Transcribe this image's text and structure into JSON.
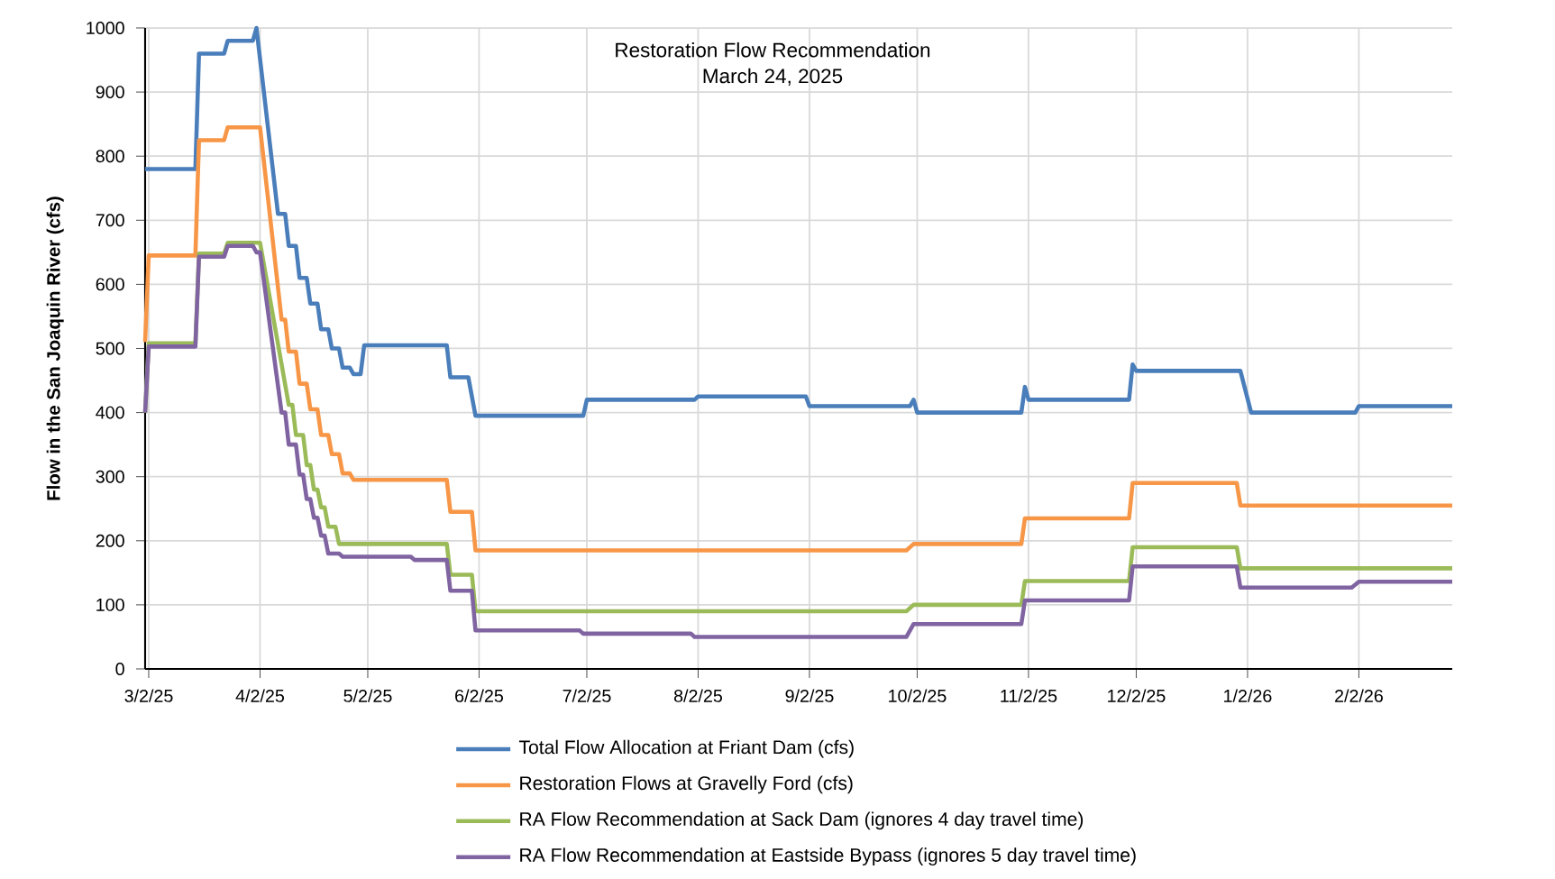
{
  "chart_data": {
    "type": "line",
    "title": "Restoration Flow Recommendation",
    "subtitle": "March 24, 2025",
    "ylabel": "Flow in the San Joaquin River (cfs)",
    "xlim": [
      "2025-03-01",
      "2026-02-28"
    ],
    "ylim": [
      0,
      1000
    ],
    "xticks": [
      {
        "value": "2025-03-02",
        "label": "3/2/25"
      },
      {
        "value": "2025-04-02",
        "label": "4/2/25"
      },
      {
        "value": "2025-05-02",
        "label": "5/2/25"
      },
      {
        "value": "2025-06-02",
        "label": "6/2/25"
      },
      {
        "value": "2025-07-02",
        "label": "7/2/25"
      },
      {
        "value": "2025-08-02",
        "label": "8/2/25"
      },
      {
        "value": "2025-09-02",
        "label": "9/2/25"
      },
      {
        "value": "2025-10-02",
        "label": "10/2/25"
      },
      {
        "value": "2025-11-02",
        "label": "11/2/25"
      },
      {
        "value": "2025-12-02",
        "label": "12/2/25"
      },
      {
        "value": "2026-01-02",
        "label": "1/2/26"
      },
      {
        "value": "2026-02-02",
        "label": "2/2/26"
      }
    ],
    "yticks": [
      0,
      100,
      200,
      300,
      400,
      500,
      600,
      700,
      800,
      900,
      1000
    ],
    "grid": true,
    "legend": "bottom",
    "marker": "none",
    "line_style": "solid",
    "series": [
      {
        "name": "Total Flow Allocation at Friant Dam (cfs)",
        "color": "#4a7ebb",
        "x": [
          "2025-03-01",
          "2025-03-02",
          "2025-03-15",
          "2025-03-16",
          "2025-03-23",
          "2025-03-24",
          "2025-03-31",
          "2025-04-01",
          "2025-04-07",
          "2025-04-09",
          "2025-04-10",
          "2025-04-12",
          "2025-04-13",
          "2025-04-15",
          "2025-04-16",
          "2025-04-18",
          "2025-04-19",
          "2025-04-21",
          "2025-04-22",
          "2025-04-24",
          "2025-04-25",
          "2025-04-27",
          "2025-04-28",
          "2025-04-30",
          "2025-05-01",
          "2025-05-24",
          "2025-05-25",
          "2025-05-30",
          "2025-06-01",
          "2025-07-01",
          "2025-07-02",
          "2025-08-01",
          "2025-08-02",
          "2025-09-01",
          "2025-09-02",
          "2025-09-30",
          "2025-10-01",
          "2025-10-02",
          "2025-10-31",
          "2025-11-01",
          "2025-11-02",
          "2025-11-30",
          "2025-12-01",
          "2025-12-02",
          "2025-12-31",
          "2026-01-03",
          "2026-02-01",
          "2026-02-02",
          "2026-02-28"
        ],
        "values": [
          780,
          780,
          780,
          960,
          960,
          980,
          980,
          1000,
          710,
          710,
          660,
          660,
          610,
          610,
          570,
          570,
          530,
          530,
          500,
          500,
          470,
          470,
          460,
          460,
          505,
          505,
          455,
          455,
          395,
          395,
          420,
          420,
          425,
          425,
          410,
          410,
          420,
          400,
          400,
          440,
          420,
          420,
          475,
          465,
          465,
          400,
          400,
          410,
          410
        ]
      },
      {
        "name": "Restoration Flows at Gravelly Ford (cfs)",
        "color": "#f79646",
        "x": [
          "2025-03-01",
          "2025-03-02",
          "2025-03-15",
          "2025-03-16",
          "2025-03-23",
          "2025-03-24",
          "2025-04-02",
          "2025-04-08",
          "2025-04-09",
          "2025-04-10",
          "2025-04-12",
          "2025-04-13",
          "2025-04-15",
          "2025-04-16",
          "2025-04-18",
          "2025-04-19",
          "2025-04-21",
          "2025-04-22",
          "2025-04-24",
          "2025-04-25",
          "2025-04-27",
          "2025-04-28",
          "2025-05-24",
          "2025-05-25",
          "2025-05-31",
          "2025-06-01",
          "2025-09-29",
          "2025-10-01",
          "2025-10-31",
          "2025-11-01",
          "2025-11-30",
          "2025-12-01",
          "2025-12-30",
          "2025-12-31",
          "2026-02-28"
        ],
        "values": [
          510,
          645,
          645,
          825,
          825,
          845,
          845,
          545,
          545,
          495,
          495,
          445,
          445,
          405,
          405,
          365,
          365,
          335,
          335,
          305,
          305,
          295,
          295,
          245,
          245,
          185,
          185,
          195,
          195,
          235,
          235,
          290,
          290,
          255,
          255
        ]
      },
      {
        "name": "RA Flow Recommendation at Sack Dam (ignores 4 day travel time)",
        "color": "#9bbb59",
        "x": [
          "2025-03-01",
          "2025-03-02",
          "2025-03-15",
          "2025-03-16",
          "2025-03-23",
          "2025-03-24",
          "2025-04-02",
          "2025-04-10",
          "2025-04-11",
          "2025-04-12",
          "2025-04-14",
          "2025-04-15",
          "2025-04-16",
          "2025-04-17",
          "2025-04-18",
          "2025-04-19",
          "2025-04-20",
          "2025-04-21",
          "2025-04-23",
          "2025-04-24",
          "2025-05-24",
          "2025-05-25",
          "2025-05-31",
          "2025-06-01",
          "2025-09-29",
          "2025-10-01",
          "2025-10-31",
          "2025-11-01",
          "2025-11-30",
          "2025-12-01",
          "2025-12-30",
          "2025-12-31",
          "2026-02-28"
        ],
        "values": [
          400,
          508,
          508,
          648,
          648,
          665,
          665,
          412,
          412,
          365,
          365,
          318,
          318,
          280,
          280,
          252,
          252,
          222,
          222,
          195,
          195,
          147,
          147,
          90,
          90,
          100,
          100,
          137,
          137,
          190,
          190,
          157,
          157
        ]
      },
      {
        "name": "RA Flow Recommendation at Eastside Bypass (ignores 5 day travel time)",
        "color": "#8064a2",
        "x": [
          "2025-03-01",
          "2025-03-02",
          "2025-03-15",
          "2025-03-16",
          "2025-03-23",
          "2025-03-24",
          "2025-03-31",
          "2025-04-01",
          "2025-04-02",
          "2025-04-08",
          "2025-04-09",
          "2025-04-10",
          "2025-04-12",
          "2025-04-13",
          "2025-04-14",
          "2025-04-15",
          "2025-04-16",
          "2025-04-17",
          "2025-04-18",
          "2025-04-19",
          "2025-04-20",
          "2025-04-21",
          "2025-04-24",
          "2025-04-25",
          "2025-05-14",
          "2025-05-15",
          "2025-05-24",
          "2025-05-25",
          "2025-05-31",
          "2025-06-01",
          "2025-06-30",
          "2025-07-01",
          "2025-07-31",
          "2025-08-01",
          "2025-09-29",
          "2025-10-01",
          "2025-10-31",
          "2025-11-01",
          "2025-11-30",
          "2025-12-01",
          "2025-12-30",
          "2025-12-31",
          "2026-01-31",
          "2026-02-02",
          "2026-02-28"
        ],
        "values": [
          400,
          503,
          503,
          643,
          643,
          660,
          660,
          650,
          650,
          400,
          400,
          350,
          350,
          303,
          303,
          265,
          265,
          236,
          236,
          208,
          208,
          180,
          180,
          175,
          175,
          170,
          170,
          122,
          122,
          60,
          60,
          55,
          55,
          50,
          50,
          70,
          70,
          107,
          107,
          160,
          160,
          127,
          127,
          136,
          136
        ]
      }
    ]
  }
}
